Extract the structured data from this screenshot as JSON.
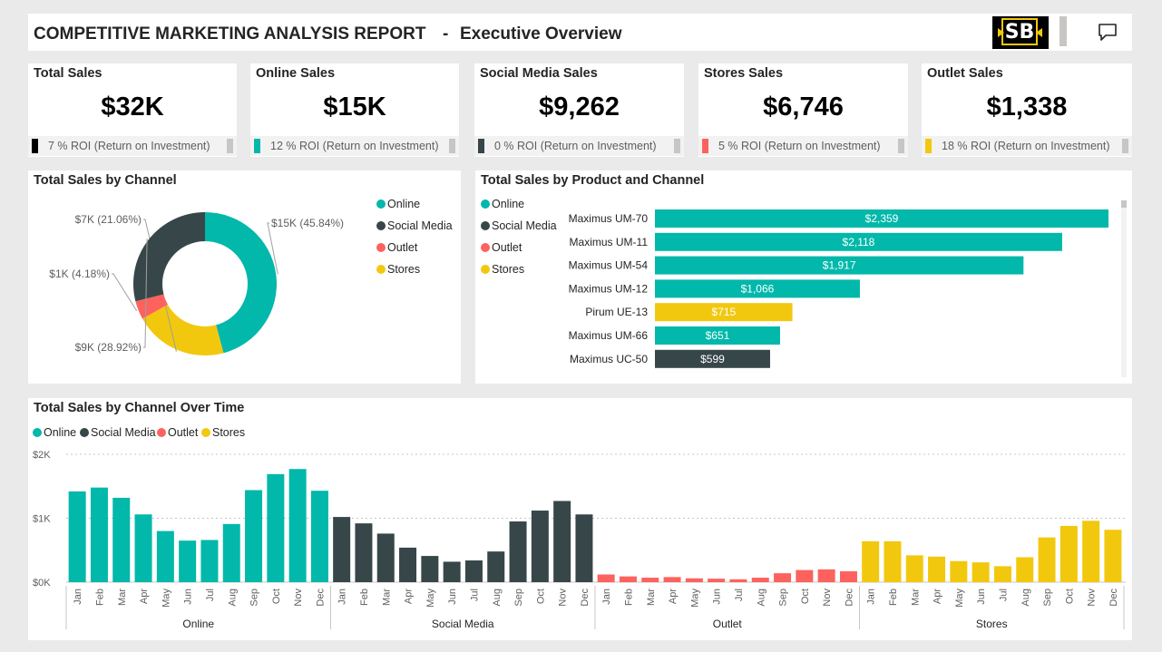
{
  "header": {
    "title": "COMPETITIVE MARKETING ANALYSIS REPORT",
    "separator": "-",
    "subtitle": "Executive Overview",
    "logo_text": "SB"
  },
  "colors": {
    "online": "#01b8aa",
    "social_media": "#374649",
    "outlet": "#fd625e",
    "stores": "#f2c80f"
  },
  "kpis": [
    {
      "label": "Total Sales",
      "value": "$32K",
      "roi": "7 % ROI (Return on Investment)",
      "color": "#000000"
    },
    {
      "label": "Online Sales",
      "value": "$15K",
      "roi": "12 % ROI (Return on Investment)",
      "color": "#01b8aa"
    },
    {
      "label": "Social Media Sales",
      "value": "$9,262",
      "roi": "0 % ROI (Return on Investment)",
      "color": "#374649"
    },
    {
      "label": "Stores Sales",
      "value": "$6,746",
      "roi": "5 % ROI (Return on Investment)",
      "color": "#fd625e"
    },
    {
      "label": "Outlet Sales",
      "value": "$1,338",
      "roi": "18 % ROI (Return on Investment)",
      "color": "#f2c80f"
    }
  ],
  "legend": [
    "Online",
    "Social Media",
    "Outlet",
    "Stores"
  ],
  "chart_data": [
    {
      "type": "pie",
      "title": "Total Sales by Channel",
      "donut": true,
      "categories": [
        "Online",
        "Stores",
        "Outlet",
        "Social Media"
      ],
      "values": [
        45.84,
        21.06,
        4.18,
        28.92
      ],
      "labels": [
        "$15K (45.84%)",
        "$7K (21.06%)",
        "$1K (4.18%)",
        "$9K (28.92%)"
      ],
      "legend": [
        "Online",
        "Social Media",
        "Outlet",
        "Stores"
      ],
      "legend_position": "right"
    },
    {
      "type": "bar",
      "orientation": "horizontal",
      "title": "Total Sales by Product and Channel",
      "categories": [
        "Maximus UM-70",
        "Maximus UM-11",
        "Maximus UM-54",
        "Maximus UM-12",
        "Pirum UE-13",
        "Maximus UM-66",
        "Maximus UC-50"
      ],
      "values": [
        2359,
        2118,
        1917,
        1066,
        715,
        651,
        599
      ],
      "data_labels": [
        "$2,359",
        "$2,118",
        "$1,917",
        "$1,066",
        "$715",
        "$651",
        "$599"
      ],
      "channel": [
        "Online",
        "Online",
        "Online",
        "Online",
        "Stores",
        "Online",
        "Social Media"
      ],
      "xlim": [
        0,
        2400
      ],
      "legend": [
        "Online",
        "Social Media",
        "Outlet",
        "Stores"
      ],
      "legend_position": "left"
    },
    {
      "type": "bar",
      "title": "Total Sales by Channel Over Time",
      "months": [
        "Jan",
        "Feb",
        "Mar",
        "Apr",
        "May",
        "Jun",
        "Jul",
        "Aug",
        "Sep",
        "Oct",
        "Nov",
        "Dec"
      ],
      "groups": [
        "Online",
        "Social Media",
        "Outlet",
        "Stores"
      ],
      "series": [
        {
          "name": "Online",
          "values": [
            1420,
            1480,
            1320,
            1060,
            800,
            650,
            660,
            910,
            1440,
            1690,
            1770,
            1430
          ]
        },
        {
          "name": "Social Media",
          "values": [
            1020,
            920,
            760,
            540,
            410,
            320,
            340,
            480,
            950,
            1120,
            1270,
            1060
          ]
        },
        {
          "name": "Outlet",
          "values": [
            120,
            90,
            70,
            80,
            60,
            55,
            45,
            70,
            140,
            190,
            200,
            170
          ]
        },
        {
          "name": "Stores",
          "values": [
            640,
            640,
            420,
            400,
            330,
            310,
            250,
            390,
            700,
            880,
            960,
            820
          ]
        }
      ],
      "y_ticks": [
        "$0K",
        "$1K",
        "$2K"
      ],
      "ylim": [
        0,
        2000
      ],
      "legend": [
        "Online",
        "Social Media",
        "Outlet",
        "Stores"
      ],
      "legend_position": "top-left"
    }
  ]
}
